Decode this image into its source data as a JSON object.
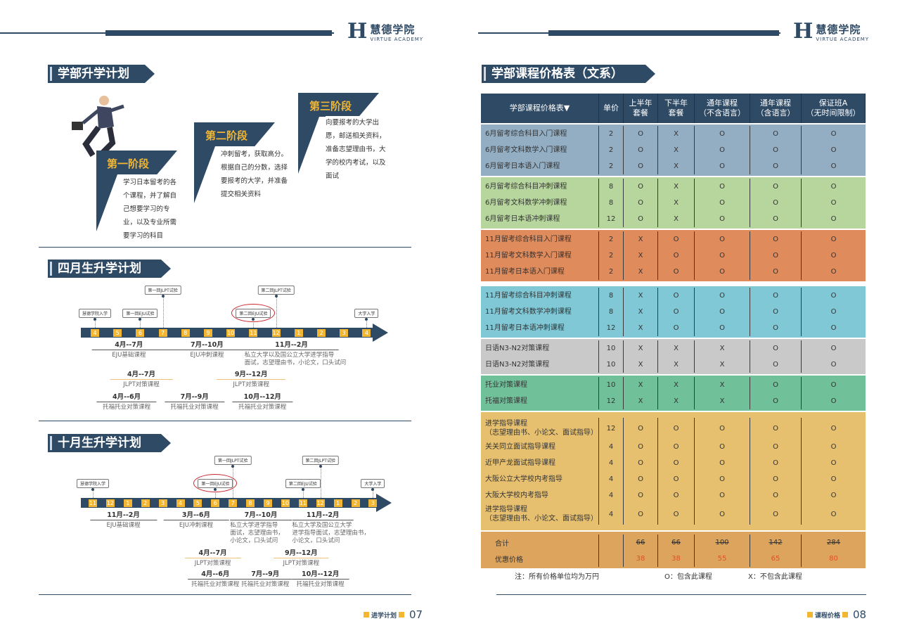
{
  "brand": {
    "cn": "慧德学院",
    "en": "VIRTUE ACADEMY",
    "mark": "H"
  },
  "left": {
    "plan_title": "学部升学计划",
    "stages": [
      {
        "title": "第一阶段",
        "text": "学习日本留考的各个课程，并了解自己想要学习的专业，以及专业所需要学习的科目"
      },
      {
        "title": "第二阶段",
        "text": "冲刺留考，获取高分。根据自己的分数，选择要报考的大学，并准备提交相关资料"
      },
      {
        "title": "第三阶段",
        "text": "向要报考的大学出愿，邮送相关资料，准备志望理由书，大学的校内考试，以及面试"
      }
    ],
    "april": {
      "title": "四月生升学计划",
      "months": [
        "4",
        "5",
        "6",
        "7",
        "8",
        "9",
        "10",
        "11",
        "12",
        "1",
        "2",
        "3",
        "4"
      ],
      "events": [
        {
          "label": "慧德学院入学",
          "at": 0,
          "level": 1
        },
        {
          "label": "第一回EJU试验",
          "at": 2,
          "level": 1
        },
        {
          "label": "第一回JLPT试验",
          "at": 3,
          "level": 2
        },
        {
          "label": "第二回EJU试验",
          "at": 7,
          "level": 1,
          "circled": true
        },
        {
          "label": "第二回JLPT试验",
          "at": 8,
          "level": 2
        },
        {
          "label": "大学入学",
          "at": 12,
          "level": 1
        }
      ],
      "courses": [
        {
          "period": "4月--7月",
          "desc": "EJU基础课程",
          "from": 0,
          "to": 3,
          "row": 0
        },
        {
          "period": "7月--10月",
          "desc": "EJU冲刺课程",
          "from": 3.2,
          "to": 6.7,
          "row": 0
        },
        {
          "period": "11月--2月",
          "desc": "私立大学以及国公立大学进学指导\n面试，志望理由书，小论文，口头试问",
          "from": 6.9,
          "to": 10.8,
          "row": 0
        },
        {
          "period": "4月--7月",
          "desc": "JLPT对策课程",
          "from": 0.8,
          "to": 3.3,
          "row": 1,
          "jlpt": true
        },
        {
          "period": "9月--12月",
          "desc": "JLPT对策课程",
          "from": 5.5,
          "to": 8.3,
          "row": 1,
          "jlpt": true
        },
        {
          "period": "4月--6月",
          "desc": "托福托业对策课程",
          "from": 0.2,
          "to": 2.6,
          "row": 2
        },
        {
          "period": "7月--9月",
          "desc": "托福托业对策课程",
          "from": 3.2,
          "to": 5.6,
          "row": 2
        },
        {
          "period": "10月--12月",
          "desc": "托福托业对策课程",
          "from": 6.2,
          "to": 8.6,
          "row": 2
        }
      ]
    },
    "october": {
      "title": "十月生升学计划",
      "months": [
        "11",
        "12",
        "1",
        "2",
        "3",
        "4",
        "5",
        "6",
        "7",
        "8",
        "9",
        "10",
        "11",
        "12",
        "1",
        "2",
        "3"
      ],
      "events": [
        {
          "label": "慧德学院入学",
          "at": 0,
          "level": 1
        },
        {
          "label": "第一回EJU试验",
          "at": 7,
          "level": 1,
          "circled": true
        },
        {
          "label": "第一回JLPT试验",
          "at": 8,
          "level": 2
        },
        {
          "label": "第二回EJU试验",
          "at": 12,
          "level": 1
        },
        {
          "label": "第二回JLPT试验",
          "at": 13,
          "level": 2
        },
        {
          "label": "大学入学",
          "at": 16,
          "level": 1
        }
      ],
      "courses": [
        {
          "period": "11月--2月",
          "desc": "EJU基础课程",
          "from": 0,
          "to": 3.5,
          "row": 0
        },
        {
          "period": "3月--6月",
          "desc": "EJU冲刺课程",
          "from": 4.2,
          "to": 7.6,
          "row": 0
        },
        {
          "period": "7月--10月",
          "desc": "私立大学进学指导\n面试，志望理由书，\n小论文，口头试问",
          "from": 8,
          "to": 11.2,
          "row": 0
        },
        {
          "period": "11月--2月",
          "desc": "私立大学及国公立大学\n进学指导面试，志望理由书，\n小论文，口头试问",
          "from": 12,
          "to": 15.2,
          "row": 0
        },
        {
          "period": "4月--7月",
          "desc": "JLPT对策课程",
          "from": 5.4,
          "to": 8.3,
          "row": 1,
          "jlpt": true
        },
        {
          "period": "9月--12月",
          "desc": "JLPT对策课程",
          "from": 10.5,
          "to": 13.3,
          "row": 1,
          "jlpt": true
        },
        {
          "period": "4月--6月",
          "desc": "托福托业对策课程",
          "from": 5.6,
          "to": 8.4,
          "row": 2
        },
        {
          "period": "7月--9月",
          "desc": "托福托业对策课程",
          "from": 8.5,
          "to": 11.2,
          "row": 2
        },
        {
          "period": "10月--12月",
          "desc": "托福托业对策课程",
          "from": 11.5,
          "to": 14.5,
          "row": 2
        }
      ]
    },
    "footer": {
      "label": "进学计划",
      "page": "07"
    }
  },
  "right": {
    "title": "学部课程价格表（文系）",
    "headers": [
      "学部课程价格表▼",
      "单价",
      "上半年\n套餐",
      "下半年\n套餐",
      "通年课程\n（不含语言）",
      "通年课程\n（含语言）",
      "保证班A\n（无时间限制）"
    ],
    "groups": [
      {
        "color": "#93aec3",
        "rows": [
          [
            "6月留考综合科目入门课程",
            "2",
            "O",
            "X",
            "O",
            "O",
            "O"
          ],
          [
            "6月留考文科数学入门课程",
            "2",
            "O",
            "X",
            "O",
            "O",
            "O"
          ],
          [
            "6月留考日本语入门课程",
            "2",
            "O",
            "X",
            "O",
            "O",
            "O"
          ]
        ]
      },
      {
        "color": "#b7d69e",
        "rows": [
          [
            "6月留考综合科目冲刺课程",
            "8",
            "O",
            "X",
            "O",
            "O",
            "O"
          ],
          [
            "6月留考文科数学冲刺课程",
            "8",
            "O",
            "X",
            "O",
            "O",
            "O"
          ],
          [
            "6月留考日本语冲刺课程",
            "12",
            "O",
            "X",
            "O",
            "O",
            "O"
          ]
        ]
      },
      {
        "color": "#e08b5c",
        "rows": [
          [
            "11月留考综合科目入门课程",
            "2",
            "X",
            "O",
            "O",
            "O",
            "O"
          ],
          [
            "11月留考文科数学入门课程",
            "2",
            "X",
            "O",
            "O",
            "O",
            "O"
          ],
          [
            "11月留考日本语入门课程",
            "2",
            "X",
            "O",
            "O",
            "O",
            "O"
          ]
        ]
      },
      {
        "color": "#80c8d6",
        "rows": [
          [
            "11月留考综合科目冲刺课程",
            "8",
            "X",
            "O",
            "O",
            "O",
            "O"
          ],
          [
            "11月留考文科数学冲刺课程",
            "8",
            "X",
            "O",
            "O",
            "O",
            "O"
          ],
          [
            "11月留考日本语冲刺课程",
            "12",
            "X",
            "O",
            "O",
            "O",
            "O"
          ]
        ]
      },
      {
        "color": "#c9c9c9",
        "rows": [
          [
            "日语N3-N2对策课程",
            "10",
            "X",
            "X",
            "X",
            "O",
            "O"
          ],
          [
            "日语N3-N2对策课程",
            "10",
            "X",
            "X",
            "X",
            "O",
            "O"
          ]
        ]
      },
      {
        "color": "#70c09a",
        "rows": [
          [
            "托业对策课程",
            "10",
            "X",
            "X",
            "X",
            "O",
            "O"
          ],
          [
            "托福对策课程",
            "12",
            "X",
            "X",
            "X",
            "O",
            "O"
          ]
        ]
      },
      {
        "color": "#e7c06f",
        "rows": [
          [
            "进学指导课程\n（志望理由书、小论文、面试指导）",
            "12",
            "O",
            "O",
            "O",
            "O",
            "O"
          ],
          [
            "关关同立面试指导课程",
            "4",
            "O",
            "O",
            "O",
            "O",
            "O"
          ],
          [
            "近甲产龙面试指导课程",
            "4",
            "O",
            "O",
            "O",
            "O",
            "O"
          ],
          [
            "大阪公立大学校内考指导",
            "4",
            "O",
            "O",
            "O",
            "O",
            "O"
          ],
          [
            "大阪大学校内考指导",
            "4",
            "O",
            "O",
            "O",
            "O",
            "O"
          ],
          [
            "进学指导课程\n（志望理由书、小论文、面试指导）",
            "4",
            "O",
            "O",
            "O",
            "O",
            "O"
          ]
        ]
      }
    ],
    "totals": {
      "color": "#dca45c",
      "total_label": "合计",
      "total": [
        "66",
        "66",
        "100",
        "142",
        "284"
      ],
      "discount_label": "优惠价格",
      "discount": [
        "38",
        "38",
        "55",
        "65",
        "80"
      ]
    },
    "notes": [
      "注：所有价格单位均为万円",
      "O：包含此课程",
      "X：不包含此课程"
    ],
    "footer": {
      "label": "课程价格",
      "page": "08"
    }
  }
}
